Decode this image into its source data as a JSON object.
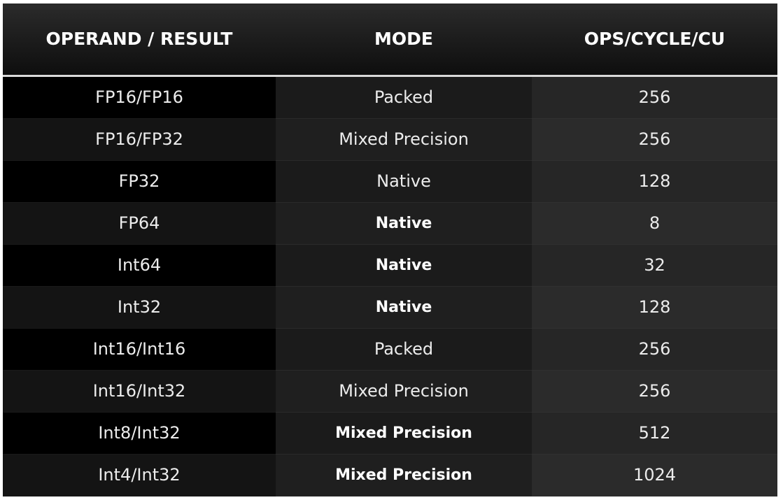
{
  "table": {
    "headers": [
      "OPERAND / RESULT",
      "MODE",
      "OPS/CYCLE/CU"
    ],
    "rows": [
      {
        "operand": "FP16/FP16",
        "mode": "Packed",
        "mode_bold": false,
        "ops": "256"
      },
      {
        "operand": "FP16/FP32",
        "mode": "Mixed Precision",
        "mode_bold": false,
        "ops": "256"
      },
      {
        "operand": "FP32",
        "mode": "Native",
        "mode_bold": false,
        "ops": "128"
      },
      {
        "operand": "FP64",
        "mode": "Native",
        "mode_bold": true,
        "ops": "8"
      },
      {
        "operand": "Int64",
        "mode": "Native",
        "mode_bold": true,
        "ops": "32"
      },
      {
        "operand": "Int32",
        "mode": "Native",
        "mode_bold": true,
        "ops": "128"
      },
      {
        "operand": "Int16/Int16",
        "mode": "Packed",
        "mode_bold": false,
        "ops": "256"
      },
      {
        "operand": "Int16/Int32",
        "mode": "Mixed Precision",
        "mode_bold": false,
        "ops": "256"
      },
      {
        "operand": "Int8/Int32",
        "mode": "Mixed Precision",
        "mode_bold": true,
        "ops": "512"
      },
      {
        "operand": "Int4/Int32",
        "mode": "Mixed Precision",
        "mode_bold": true,
        "ops": "1024"
      }
    ]
  }
}
